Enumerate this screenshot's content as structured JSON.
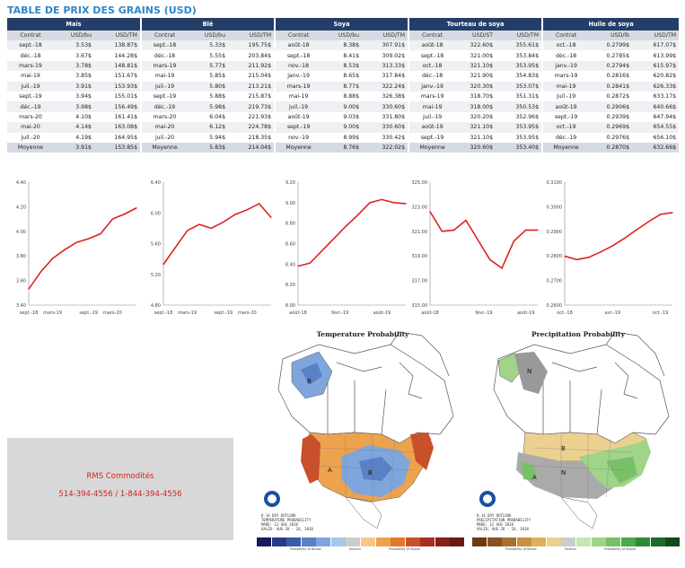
{
  "title": "TABLE DE PRIX DES GRAINS (USD)",
  "groups": [
    {
      "name": "Maïs",
      "cols": [
        "Contrat",
        "USD/bu",
        "USD/TM"
      ],
      "rows": [
        [
          "sept.-18",
          "3.53$",
          "138.87$"
        ],
        [
          "déc.-18",
          "3.67$",
          "144.28$"
        ],
        [
          "mars-19",
          "3.78$",
          "148.81$"
        ],
        [
          "mai-19",
          "3.85$",
          "151.67$"
        ],
        [
          "juil.-19",
          "3.91$",
          "153.93$"
        ],
        [
          "sept.-19",
          "3.94$",
          "155.01$"
        ],
        [
          "déc.-19",
          "3.98$",
          "156.49$"
        ],
        [
          "mars-20",
          "4.10$",
          "161.41$"
        ],
        [
          "mai-20",
          "4.14$",
          "163.08$"
        ],
        [
          "juil.-20",
          "4.19$",
          "164.95$"
        ],
        [
          "Moyenne",
          "3.91$",
          "153.85$"
        ]
      ]
    },
    {
      "name": "Blé",
      "cols": [
        "Contrat",
        "USD/bu",
        "USD/TM"
      ],
      "rows": [
        [
          "sept.-18",
          "5.33$",
          "195.75$"
        ],
        [
          "déc.-18",
          "5.55$",
          "203.84$"
        ],
        [
          "mars-19",
          "5.77$",
          "211.92$"
        ],
        [
          "mai-19",
          "5.85$",
          "215.04$"
        ],
        [
          "juil.-19",
          "5.80$",
          "213.21$"
        ],
        [
          "sept.-19",
          "5.88$",
          "215.87$"
        ],
        [
          "déc.-19",
          "5.98$",
          "219.73$"
        ],
        [
          "mars-20",
          "6.04$",
          "221.93$"
        ],
        [
          "mai-20",
          "6.12$",
          "224.78$"
        ],
        [
          "juil.-20",
          "5.94$",
          "218.35$"
        ],
        [
          "Moyenne",
          "5.83$",
          "214.04$"
        ]
      ]
    },
    {
      "name": "Soya",
      "cols": [
        "Contrat",
        "USD/bu",
        "USD/TM"
      ],
      "rows": [
        [
          "août-18",
          "8.38$",
          "307.91$"
        ],
        [
          "sept.-18",
          "8.41$",
          "309.02$"
        ],
        [
          "nov.-18",
          "8.53$",
          "313.33$"
        ],
        [
          "janv.-19",
          "8.65$",
          "317.84$"
        ],
        [
          "mars-19",
          "8.77$",
          "322.24$"
        ],
        [
          "mai-19",
          "8.88$",
          "326.38$"
        ],
        [
          "juil.-19",
          "9.00$",
          "330.60$"
        ],
        [
          "août-19",
          "9.03$",
          "331.80$"
        ],
        [
          "sept.-19",
          "9.00$",
          "330.60$"
        ],
        [
          "nov.-19",
          "8.99$",
          "330.42$"
        ],
        [
          "Moyenne",
          "8.76$",
          "322.02$"
        ]
      ]
    },
    {
      "name": "Tourteau de soya",
      "cols": [
        "Contrat",
        "USD/ST",
        "USD/TM"
      ],
      "rows": [
        [
          "août-18",
          "322.60$",
          "355.61$"
        ],
        [
          "sept.-18",
          "321.00$",
          "353.84$"
        ],
        [
          "oct.-18",
          "321.10$",
          "353.95$"
        ],
        [
          "déc.-18",
          "321.90$",
          "354.83$"
        ],
        [
          "janv.-19",
          "320.30$",
          "353.07$"
        ],
        [
          "mars-19",
          "318.70$",
          "351.31$"
        ],
        [
          "mai-19",
          "318.00$",
          "350.53$"
        ],
        [
          "juil.-19",
          "320.20$",
          "352.96$"
        ],
        [
          "août-19",
          "321.10$",
          "353.95$"
        ],
        [
          "sept.-19",
          "321.10$",
          "353.95$"
        ],
        [
          "Moyenne",
          "320.60$",
          "353.40$"
        ]
      ]
    },
    {
      "name": "Huile de soya",
      "cols": [
        "Contrat",
        "USD/lb",
        "USD/TM"
      ],
      "rows": [
        [
          "oct.-18",
          "0.2799$",
          "617.07$"
        ],
        [
          "déc.-18",
          "0.2785$",
          "613.99$"
        ],
        [
          "janv.-19",
          "0.2794$",
          "615.97$"
        ],
        [
          "mars-19",
          "0.2816$",
          "620.82$"
        ],
        [
          "mai-19",
          "0.2841$",
          "626.33$"
        ],
        [
          "juil.-19",
          "0.2872$",
          "633.17$"
        ],
        [
          "août-19",
          "0.2906$",
          "640.66$"
        ],
        [
          "sept.-19",
          "0.2939$",
          "647.94$"
        ],
        [
          "oct.-19",
          "0.2969$",
          "654.55$"
        ],
        [
          "déc.-19",
          "0.2976$",
          "656.10$"
        ],
        [
          "Moyenne",
          "0.2870$",
          "632.66$"
        ]
      ]
    }
  ],
  "chart_data": [
    {
      "type": "line",
      "color": "#e02020",
      "ylim": [
        3.4,
        4.4
      ],
      "yticks": [
        "3.40",
        "3.60",
        "3.80",
        "4.00",
        "4.20",
        "4.40"
      ],
      "x": [
        "sept.-18",
        "déc.-18",
        "mars-19",
        "mai-19",
        "juil.-19",
        "sept.-19",
        "déc.-19",
        "mars-20",
        "mai-20",
        "juil.-20"
      ],
      "xticks": [
        [
          "sept.-18",
          0
        ],
        [
          "mars-19",
          2
        ],
        [
          "sept.-19",
          5
        ],
        [
          "mars-20",
          7
        ]
      ],
      "values": [
        3.53,
        3.67,
        3.78,
        3.85,
        3.91,
        3.94,
        3.98,
        4.1,
        4.14,
        4.19
      ]
    },
    {
      "type": "line",
      "color": "#e02020",
      "ylim": [
        4.8,
        6.4
      ],
      "yticks": [
        "4.80",
        "5.20",
        "5.60",
        "6.00",
        "6.40"
      ],
      "x": [
        "sept.-18",
        "déc.-18",
        "mars-19",
        "mai-19",
        "juil.-19",
        "sept.-19",
        "déc.-19",
        "mars-20",
        "mai-20",
        "juil.-20"
      ],
      "xticks": [
        [
          "sept.-18",
          0
        ],
        [
          "mars-19",
          2
        ],
        [
          "sept.-19",
          5
        ],
        [
          "mars-20",
          7
        ]
      ],
      "values": [
        5.33,
        5.55,
        5.77,
        5.85,
        5.8,
        5.88,
        5.98,
        6.04,
        6.12,
        5.94
      ]
    },
    {
      "type": "line",
      "color": "#e02020",
      "ylim": [
        8.0,
        9.2
      ],
      "yticks": [
        "8.00",
        "8.20",
        "8.40",
        "8.60",
        "8.80",
        "9.00",
        "9.20"
      ],
      "x": [
        "août-18",
        "sept.-18",
        "nov.-18",
        "janv.-19",
        "mars-19",
        "mai-19",
        "juil.-19",
        "août-19",
        "sept.-19",
        "nov.-19"
      ],
      "xticks": [
        [
          "août-18",
          0
        ],
        [
          "févr.-19",
          3.5
        ],
        [
          "août-19",
          7
        ]
      ],
      "values": [
        8.38,
        8.41,
        8.53,
        8.65,
        8.77,
        8.88,
        9.0,
        9.03,
        9.0,
        8.99
      ]
    },
    {
      "type": "line",
      "color": "#e02020",
      "ylim": [
        315,
        325
      ],
      "yticks": [
        "315.00",
        "317.00",
        "319.00",
        "321.00",
        "323.00",
        "325.00"
      ],
      "x": [
        "août-18",
        "sept.-18",
        "oct.-18",
        "déc.-18",
        "janv.-19",
        "mars-19",
        "mai-19",
        "juil.-19",
        "août-19",
        "sept.-19"
      ],
      "xticks": [
        [
          "août-18",
          0
        ],
        [
          "févr.-19",
          4.5
        ],
        [
          "août-19",
          8
        ]
      ],
      "values": [
        322.6,
        321.0,
        321.1,
        321.9,
        320.3,
        318.7,
        318.0,
        320.2,
        321.1,
        321.1
      ]
    },
    {
      "type": "line",
      "color": "#e02020",
      "ylim": [
        0.26,
        0.31
      ],
      "yticks": [
        "0.2600",
        "0.2700",
        "0.2800",
        "0.2900",
        "0.3000",
        "0.3100"
      ],
      "x": [
        "oct.-18",
        "déc.-18",
        "janv.-19",
        "mars-19",
        "mai-19",
        "juil.-19",
        "août-19",
        "sept.-19",
        "oct.-19",
        "déc.-19"
      ],
      "xticks": [
        [
          "oct.-18",
          0
        ],
        [
          "avr.-19",
          4
        ],
        [
          "oct.-19",
          8
        ]
      ],
      "values": [
        0.2799,
        0.2785,
        0.2794,
        0.2816,
        0.2841,
        0.2872,
        0.2906,
        0.2939,
        0.2969,
        0.2976
      ]
    }
  ],
  "maps": {
    "temperature_title": "Temperature Probability",
    "precipitation_title": "Precipitation Probability",
    "letters": {
      "b": "B",
      "a": "A",
      "n": "N"
    },
    "temp_stamp": [
      "8-14 DAY OUTLOOK",
      "TEMPERATURE PROBABILITY",
      "MADE: 12 AUG 2018",
      "VALID: AUG 20 - 26, 2018"
    ],
    "precip_stamp": [
      "8-14 DAY OUTLOOK",
      "PRECIPITATION PROBABILITY",
      "MADE: 12 AUG 2018",
      "VALID: AUG 20 - 26, 2018"
    ],
    "temp_legend": {
      "below": "Probability of Below",
      "normal": "Normal",
      "above": "Probability of Above",
      "colors": [
        "#1a1a5e",
        "#2a3a8a",
        "#3a5aaa",
        "#5a80c8",
        "#7ea6dc",
        "#a6c6ea",
        "#cccccc",
        "#f5c88a",
        "#eda24e",
        "#e07a2a",
        "#c8502a",
        "#a83020",
        "#8a2018",
        "#6a1a12"
      ]
    },
    "precip_legend": {
      "below": "Probability of Below",
      "normal": "Normal",
      "above": "Probability of Above",
      "colors": [
        "#6a3a10",
        "#8a5220",
        "#a8702e",
        "#c89040",
        "#ddb060",
        "#ecd090",
        "#cccccc",
        "#c8e6b0",
        "#a0d488",
        "#78c068",
        "#4ca84a",
        "#2e8a36",
        "#1e6a2a",
        "#124a1e"
      ]
    }
  },
  "contact": {
    "name": "RMS Commodités",
    "phone": "514-394-4556 / 1-844-394-4556"
  }
}
